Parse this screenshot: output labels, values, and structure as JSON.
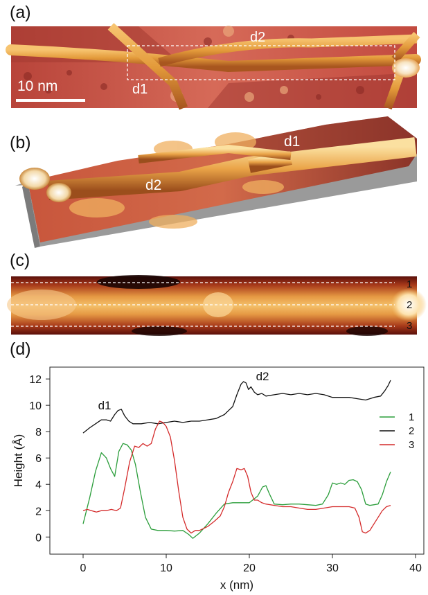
{
  "panels": {
    "a": {
      "label": "(a)",
      "scalebar": "10 nm",
      "defects": [
        "d1",
        "d2"
      ]
    },
    "b": {
      "label": "(b)",
      "defects": [
        "d1",
        "d2"
      ]
    },
    "c": {
      "label": "(c)",
      "line_labels": [
        "1",
        "2",
        "3"
      ]
    },
    "d": {
      "label": "(d)"
    }
  },
  "colors": {
    "series1": "#2a9d3a",
    "series2": "#111111",
    "series3": "#d42a2a"
  },
  "chart_data": {
    "type": "line",
    "title": "",
    "xlabel": "x (nm)",
    "ylabel": "Height (Å)",
    "xlim": [
      -4,
      41
    ],
    "ylim": [
      -1.3,
      12.9
    ],
    "xticks": [
      0,
      10,
      20,
      30,
      40
    ],
    "yticks": [
      0,
      2,
      4,
      6,
      8,
      10,
      12
    ],
    "legend_position": "right",
    "annotations": [
      {
        "text": "d1",
        "x": 1.8,
        "y": 9.7
      },
      {
        "text": "d2",
        "x": 20.8,
        "y": 11.9
      }
    ],
    "series": [
      {
        "name": "1",
        "x": [
          0,
          0.8,
          1.5,
          2.2,
          2.8,
          3.3,
          3.8,
          4.3,
          4.8,
          5.3,
          5.8,
          6.3,
          6.9,
          7.5,
          8.2,
          9,
          10,
          11,
          12,
          12.7,
          13.2,
          14,
          15,
          16,
          17,
          18,
          19,
          20,
          21,
          21.6,
          22,
          22.4,
          23,
          24,
          25,
          26,
          27,
          28,
          28.8,
          29.5,
          30,
          30.5,
          31,
          31.5,
          32,
          32.5,
          33,
          33.5,
          34,
          34.5,
          35,
          35.5,
          36,
          36.5,
          37
        ],
        "values": [
          1,
          3,
          5,
          6.4,
          6,
          5.2,
          4.6,
          6.5,
          7.1,
          7,
          6.6,
          5.5,
          3.4,
          1.5,
          0.6,
          0.5,
          0.5,
          0.45,
          0.5,
          0.2,
          -0.1,
          0.3,
          1,
          1.8,
          2.5,
          2.6,
          2.6,
          2.6,
          3.1,
          3.8,
          3.9,
          3.3,
          2.5,
          2.45,
          2.5,
          2.5,
          2.45,
          2.4,
          2.5,
          3.2,
          4.1,
          4,
          4.1,
          4,
          4.3,
          4.35,
          4.2,
          3.6,
          2.5,
          2.4,
          2.45,
          2.5,
          3.2,
          4.2,
          4.95
        ]
      },
      {
        "name": "2",
        "x": [
          0,
          0.8,
          1.5,
          2.2,
          2.8,
          3.3,
          3.8,
          4.2,
          4.6,
          5,
          5.5,
          6,
          7,
          8,
          9,
          10,
          11,
          12,
          13,
          14,
          15,
          16,
          17,
          17.5,
          18,
          18.5,
          19,
          19.3,
          19.6,
          19.9,
          20.2,
          20.6,
          21,
          21.5,
          22,
          23,
          24,
          25,
          26,
          27,
          28,
          29,
          30,
          31,
          32,
          33,
          34,
          35,
          35.8,
          36.3,
          36.7,
          37
        ],
        "values": [
          7.9,
          8.3,
          8.6,
          8.9,
          8.9,
          8.8,
          9.3,
          9.6,
          9.7,
          9.2,
          8.8,
          8.6,
          8.6,
          8.7,
          8.6,
          8.7,
          8.8,
          8.7,
          8.8,
          8.8,
          8.9,
          9,
          9.3,
          9.6,
          9.9,
          10.8,
          11.6,
          11.8,
          11.7,
          11.2,
          11.4,
          11,
          10.8,
          10.9,
          10.7,
          10.8,
          10.9,
          10.8,
          10.9,
          10.8,
          10.9,
          10.8,
          10.6,
          10.6,
          10.6,
          10.5,
          10.4,
          10.6,
          10.7,
          11.1,
          11.5,
          11.9
        ]
      },
      {
        "name": "3",
        "x": [
          0,
          0.5,
          1,
          1.6,
          2.2,
          2.8,
          3.4,
          4,
          4.5,
          5,
          5.6,
          6.2,
          6.7,
          7.2,
          7.7,
          8.2,
          8.7,
          9.2,
          9.6,
          10,
          10.5,
          11,
          11.5,
          12,
          12.5,
          13,
          13.5,
          14,
          15,
          15.8,
          16.5,
          17,
          17.5,
          18,
          18.5,
          19,
          19.4,
          19.8,
          20.2,
          20.6,
          21,
          21.5,
          22,
          23,
          24,
          25,
          26,
          27,
          28,
          29,
          30,
          31,
          32,
          32.7,
          33.2,
          33.6,
          34,
          34.5,
          35,
          35.5,
          36,
          36.5,
          37
        ],
        "values": [
          2,
          2.1,
          2,
          1.9,
          2,
          2,
          2.1,
          2,
          2.2,
          3.7,
          5.7,
          6.9,
          6.8,
          7.1,
          6.9,
          7.1,
          8.2,
          8.8,
          8.7,
          8.4,
          7.6,
          5.8,
          3.5,
          1.5,
          0.6,
          0.3,
          0.5,
          0.5,
          0.8,
          1.2,
          1.6,
          2.3,
          3.4,
          4.2,
          5.2,
          5.1,
          5.2,
          4.6,
          3.4,
          2.8,
          2.8,
          2.6,
          2.5,
          2.4,
          2.3,
          2.3,
          2.2,
          2.1,
          2.1,
          2.2,
          2.3,
          2.3,
          2.3,
          2.2,
          1.5,
          0.4,
          0.3,
          0.5,
          1,
          1.5,
          2,
          2.3,
          2.4
        ]
      }
    ]
  }
}
